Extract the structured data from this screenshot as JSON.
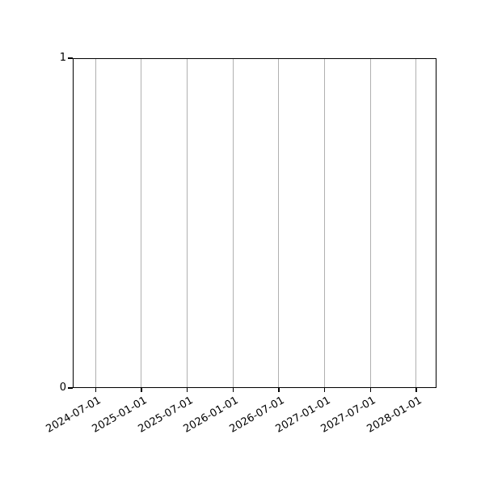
{
  "chart_data": {
    "type": "line",
    "title": "",
    "xlabel": "",
    "ylabel": "",
    "series": [],
    "plot_content": "empty axes, no data series drawn",
    "x_tick_labels": [
      "2024-07-01",
      "2025-01-01",
      "2025-07-01",
      "2026-01-01",
      "2026-07-01",
      "2027-01-01",
      "2027-07-01",
      "2028-01-01"
    ],
    "y_tick_labels": [
      "0",
      "1"
    ],
    "ylim": [
      0,
      1
    ],
    "grid": {
      "vertical": true,
      "horizontal": false
    },
    "legend_position": "none",
    "x_label_rotation_deg": 30
  },
  "style": {
    "background_color": "#ffffff",
    "grid_color": "#b0b0b0",
    "spine_color": "#000000",
    "tick_color": "#000000",
    "text_color": "#000000"
  }
}
